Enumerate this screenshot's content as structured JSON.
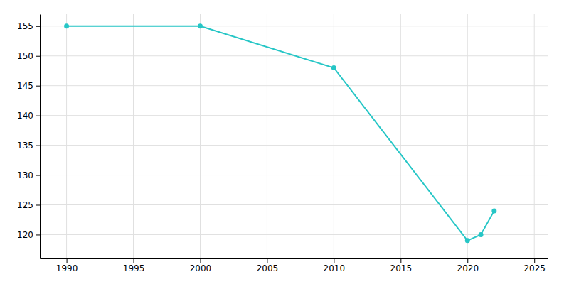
{
  "chart_data": {
    "type": "line",
    "x": [
      1990,
      2000,
      2010,
      2020,
      2021,
      2022
    ],
    "values": [
      155,
      155,
      148,
      119,
      120,
      124
    ],
    "color": "#26c6c6",
    "marker": "circle",
    "xlim": [
      1988,
      2026
    ],
    "ylim": [
      116,
      157
    ],
    "xticks": [
      1990,
      1995,
      2000,
      2005,
      2010,
      2015,
      2020,
      2025
    ],
    "yticks": [
      120,
      125,
      130,
      135,
      140,
      145,
      150,
      155
    ],
    "grid": true
  }
}
